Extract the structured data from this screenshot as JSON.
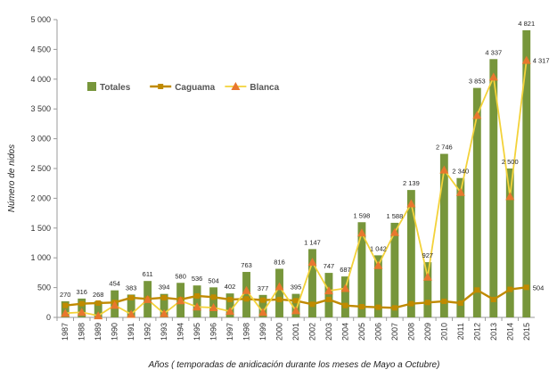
{
  "chart_data": {
    "type": "bar",
    "title": "",
    "xlabel": "Años ( temporadas de anidicación  durante los meses de Mayo a Octubre)",
    "ylabel": "Número de nidos",
    "ylim": [
      0,
      5000
    ],
    "ytick_labels": [
      "0",
      "500",
      "1 000",
      "1 500",
      "2 000",
      "2 500",
      "3 000",
      "3 500",
      "4 000",
      "4 500",
      "5 000"
    ],
    "categories": [
      "1987",
      "1988",
      "1989",
      "1990",
      "1991",
      "1992",
      "1993",
      "1994",
      "1995",
      "1996",
      "1997",
      "1998",
      "1999",
      "2000",
      "2001",
      "2002",
      "2003",
      "2004",
      "2005",
      "2006",
      "2007",
      "2008",
      "2009",
      "2010",
      "2011",
      "2012",
      "2013",
      "2014",
      "2015"
    ],
    "legend_position": "top-left",
    "grid": false,
    "series": [
      {
        "name": "Totales",
        "kind": "bar",
        "color": "#77963b",
        "values": [
          270,
          316,
          268,
          454,
          383,
          611,
          394,
          580,
          536,
          504,
          402,
          763,
          377,
          816,
          395,
          1147,
          747,
          687,
          1598,
          1042,
          1588,
          2139,
          927,
          2746,
          2340,
          3853,
          4337,
          2500,
          4821
        ],
        "data_labels": [
          "270",
          "316",
          "268",
          "454",
          "383",
          "611",
          "394",
          "580",
          "536",
          "504",
          "402",
          "763",
          "377",
          "816",
          "395",
          "1 147",
          "747",
          "687",
          "1 598",
          "1 042",
          "1 588",
          "2 139",
          "927",
          "2 746",
          "2 340",
          "3 853",
          "4 337",
          "2 500",
          "4 821"
        ]
      },
      {
        "name": "Caguama",
        "kind": "line",
        "color": "#c08a00",
        "values": [
          200,
          230,
          240,
          250,
          330,
          310,
          330,
          300,
          360,
          340,
          300,
          310,
          290,
          300,
          280,
          220,
          300,
          200,
          180,
          170,
          160,
          230,
          250,
          270,
          240,
          460,
          300,
          470,
          504
        ],
        "last_label": "504"
      },
      {
        "name": "Blanca",
        "kind": "line",
        "color": "#f3d23a",
        "marker_color": "#e8772e",
        "values": [
          70,
          86,
          28,
          204,
          53,
          301,
          64,
          280,
          176,
          164,
          102,
          453,
          87,
          516,
          115,
          927,
          447,
          487,
          1418,
          872,
          1428,
          1909,
          677,
          2476,
          2100,
          3393,
          4037,
          2030,
          4317
        ],
        "last_label": "4 317"
      }
    ]
  }
}
